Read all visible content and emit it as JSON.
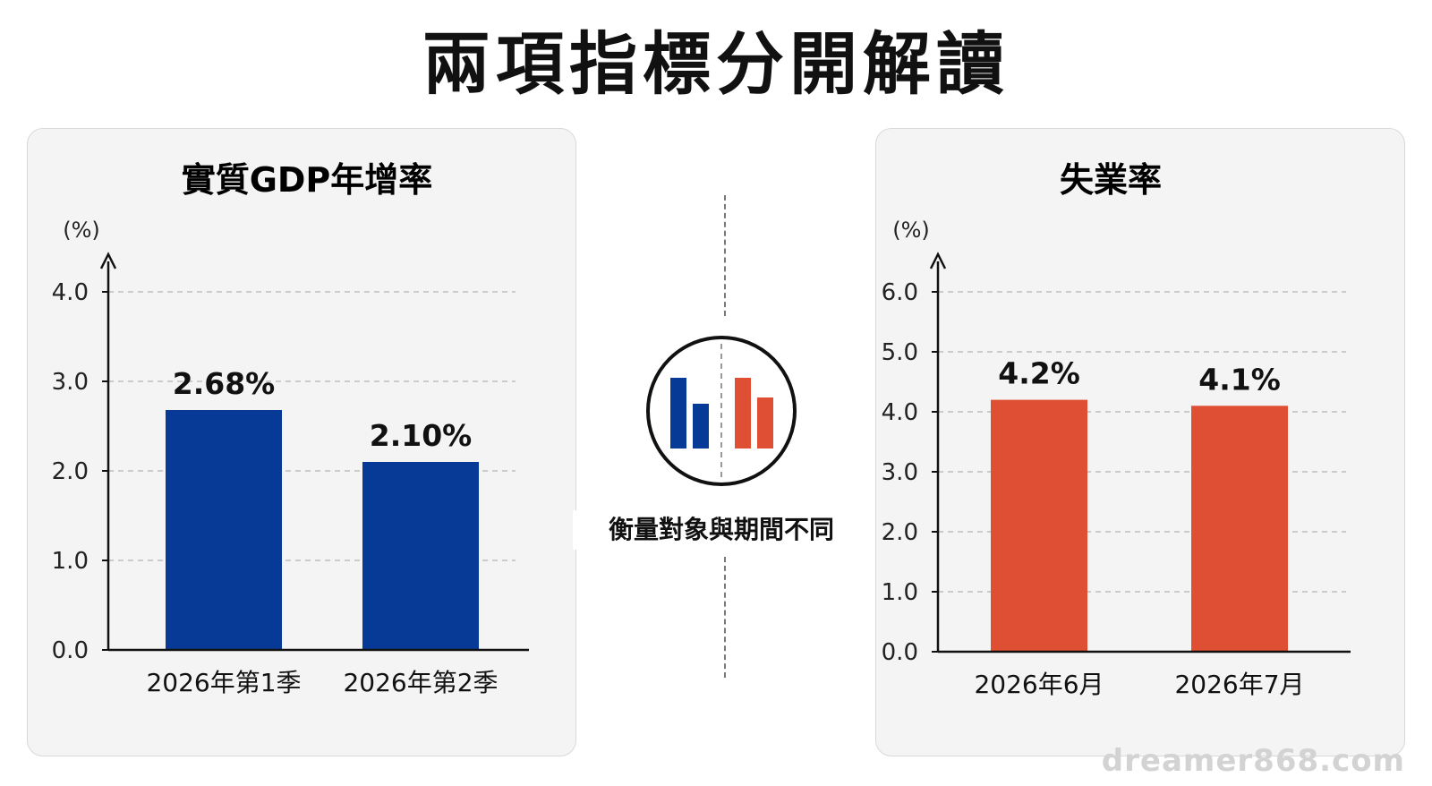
{
  "header": {
    "title": "兩項指標分開解讀"
  },
  "center": {
    "caption": "衡量對象與期間不同",
    "icon": "bar-comparison-icon"
  },
  "watermark": "dreamer868.com",
  "colors": {
    "gdp_bar": "#073a96",
    "unemployment_bar": "#df4f33"
  },
  "chart_data": [
    {
      "type": "bar",
      "title": "實質GDP年增率",
      "ylabel": "(%)",
      "xlabel": "",
      "ylim": [
        0,
        4
      ],
      "yticks": [
        "0.0",
        "1.0",
        "2.0",
        "3.0",
        "4.0"
      ],
      "categories": [
        "2026年第1季",
        "2026年第2季"
      ],
      "values": [
        2.68,
        2.1
      ],
      "value_labels": [
        "2.68%",
        "2.10%"
      ],
      "grid": "horizontal dashed",
      "color": "#073a96"
    },
    {
      "type": "bar",
      "title": "失業率",
      "ylabel": "(%)",
      "xlabel": "",
      "ylim": [
        0,
        6
      ],
      "yticks": [
        "0.0",
        "1.0",
        "2.0",
        "3.0",
        "4.0",
        "5.0",
        "6.0"
      ],
      "categories": [
        "2026年6月",
        "2026年7月"
      ],
      "values": [
        4.2,
        4.1
      ],
      "value_labels": [
        "4.2%",
        "4.1%"
      ],
      "grid": "horizontal dashed",
      "color": "#df4f33"
    }
  ]
}
